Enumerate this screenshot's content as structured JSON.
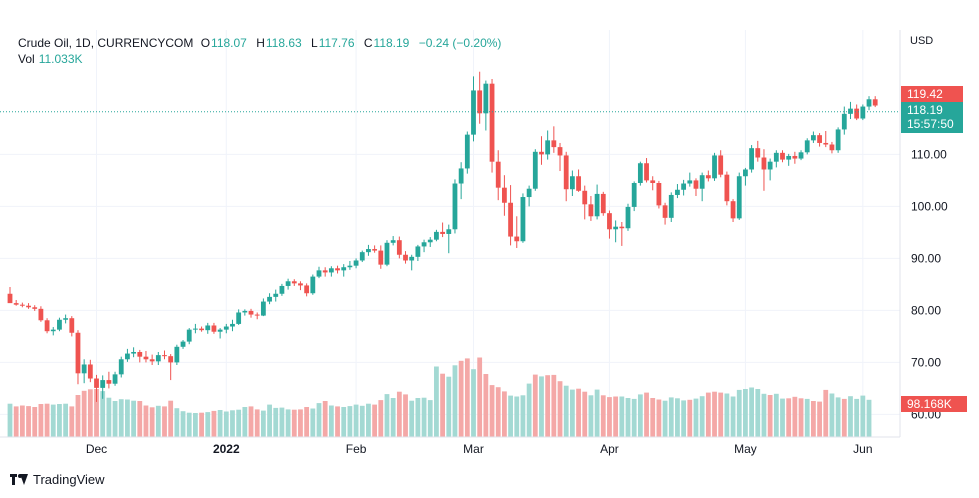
{
  "legend": {
    "symbol": "Crude Oil, 1D, CURRENCYCOM",
    "o_label": "O",
    "o_value": "118.07",
    "h_label": "H",
    "h_value": "118.63",
    "l_label": "L",
    "l_value": "117.76",
    "c_label": "C",
    "c_value": "118.19",
    "change": "−0.24 (−0.20%)",
    "vol_label": "Vol",
    "vol_value": "11.033K"
  },
  "currency": "USD",
  "tags": {
    "last_price": "119.42",
    "price": "118.19",
    "countdown": "15:57:50",
    "volume": "98.168K"
  },
  "brand": "TradingView",
  "colors": {
    "up": "#26a69a",
    "down": "#ef5350",
    "vol_up": "#a3d9d3",
    "vol_down": "#f4a8a7",
    "grid": "#f0f3fa"
  },
  "chart_data": {
    "type": "candlestick",
    "y_ticks": [
      "60.00",
      "70.00",
      "80.00",
      "90.00",
      "100.00",
      "110.00"
    ],
    "x_ticks": [
      "Dec",
      "2022",
      "Feb",
      "Mar",
      "Apr",
      "May",
      "Jun"
    ],
    "ylim": [
      57,
      127
    ],
    "current_price": 118.19,
    "candles": [
      [
        83.2,
        84.5,
        82.0,
        81.4
      ],
      [
        81.4,
        82.0,
        80.9,
        81.1
      ],
      [
        81.1,
        81.5,
        80.6,
        80.9
      ],
      [
        80.9,
        81.4,
        80.3,
        80.6
      ],
      [
        80.6,
        81.0,
        79.9,
        80.3
      ],
      [
        80.3,
        80.8,
        77.8,
        78.1
      ],
      [
        78.1,
        78.5,
        75.6,
        76.0
      ],
      [
        76.0,
        76.8,
        75.2,
        76.3
      ],
      [
        76.3,
        78.6,
        76.0,
        78.2
      ],
      [
        78.2,
        79.2,
        77.5,
        78.5
      ],
      [
        78.5,
        78.9,
        75.0,
        75.7
      ],
      [
        75.7,
        76.2,
        65.8,
        67.9
      ],
      [
        67.9,
        70.6,
        66.0,
        69.6
      ],
      [
        69.6,
        70.5,
        66.2,
        66.9
      ],
      [
        66.9,
        67.6,
        62.4,
        65.1
      ],
      [
        65.1,
        67.5,
        63.0,
        66.6
      ],
      [
        66.6,
        68.2,
        65.0,
        65.9
      ],
      [
        65.9,
        68.2,
        65.5,
        67.7
      ],
      [
        67.7,
        71.1,
        67.1,
        70.6
      ],
      [
        70.6,
        72.6,
        70.1,
        71.7
      ],
      [
        71.7,
        72.9,
        71.0,
        72.0
      ],
      [
        72.0,
        72.4,
        70.0,
        71.1
      ],
      [
        71.1,
        72.2,
        70.0,
        70.6
      ],
      [
        70.6,
        71.5,
        69.5,
        70.2
      ],
      [
        70.2,
        72.0,
        69.5,
        71.4
      ],
      [
        71.4,
        72.3,
        70.6,
        71.2
      ],
      [
        71.2,
        71.6,
        66.6,
        70.0
      ],
      [
        70.0,
        73.4,
        69.5,
        73.0
      ],
      [
        73.0,
        74.3,
        72.6,
        74.0
      ],
      [
        74.0,
        76.6,
        73.5,
        76.3
      ],
      [
        76.3,
        77.4,
        75.6,
        76.5
      ],
      [
        76.5,
        76.9,
        75.9,
        76.2
      ],
      [
        76.2,
        77.6,
        75.5,
        77.1
      ],
      [
        77.1,
        77.6,
        75.5,
        75.9
      ],
      [
        75.9,
        76.6,
        74.6,
        76.3
      ],
      [
        76.3,
        77.4,
        75.6,
        76.9
      ],
      [
        76.9,
        78.2,
        76.0,
        77.4
      ],
      [
        77.4,
        80.2,
        77.2,
        79.6
      ],
      [
        79.6,
        80.2,
        79.0,
        79.9
      ],
      [
        79.9,
        80.3,
        78.6,
        79.2
      ],
      [
        79.2,
        79.6,
        78.3,
        79.0
      ],
      [
        79.0,
        82.3,
        78.9,
        81.7
      ],
      [
        81.7,
        83.3,
        81.2,
        82.6
      ],
      [
        82.6,
        84.0,
        81.7,
        83.2
      ],
      [
        83.2,
        85.1,
        82.8,
        84.7
      ],
      [
        84.7,
        86.1,
        84.0,
        85.6
      ],
      [
        85.6,
        86.0,
        84.7,
        85.2
      ],
      [
        85.2,
        85.6,
        83.9,
        84.8
      ],
      [
        84.8,
        85.2,
        82.7,
        83.3
      ],
      [
        83.3,
        86.9,
        83.0,
        86.5
      ],
      [
        86.5,
        88.4,
        86.2,
        87.7
      ],
      [
        87.7,
        88.3,
        86.5,
        87.3
      ],
      [
        87.3,
        88.5,
        86.5,
        88.1
      ],
      [
        88.1,
        88.6,
        87.1,
        87.7
      ],
      [
        87.7,
        88.9,
        86.5,
        88.3
      ],
      [
        88.3,
        89.5,
        87.8,
        88.6
      ],
      [
        88.6,
        90.0,
        88.1,
        89.6
      ],
      [
        89.6,
        91.5,
        89.3,
        91.2
      ],
      [
        91.2,
        92.6,
        90.5,
        91.8
      ],
      [
        91.8,
        92.5,
        91.1,
        91.5
      ],
      [
        91.5,
        92.5,
        88.0,
        88.8
      ],
      [
        88.8,
        93.5,
        88.5,
        93.0
      ],
      [
        93.0,
        94.3,
        92.5,
        93.5
      ],
      [
        93.5,
        94.2,
        90.0,
        90.7
      ],
      [
        90.7,
        91.4,
        89.0,
        89.6
      ],
      [
        89.6,
        90.7,
        87.7,
        90.3
      ],
      [
        90.3,
        92.6,
        89.5,
        92.3
      ],
      [
        92.3,
        93.6,
        91.2,
        93.1
      ],
      [
        93.1,
        94.1,
        92.2,
        93.6
      ],
      [
        93.6,
        95.5,
        93.3,
        95.1
      ],
      [
        95.1,
        96.9,
        94.1,
        94.7
      ],
      [
        94.7,
        96.5,
        91.0,
        95.6
      ],
      [
        95.6,
        105.2,
        94.8,
        104.4
      ],
      [
        104.4,
        108.5,
        101.4,
        107.3
      ],
      [
        107.3,
        114.4,
        106.3,
        113.8
      ],
      [
        113.8,
        125.0,
        112.5,
        122.3
      ],
      [
        122.3,
        125.9,
        115.9,
        117.9
      ],
      [
        117.9,
        124.2,
        114.6,
        123.6
      ],
      [
        123.6,
        124.5,
        106.5,
        108.6
      ],
      [
        108.6,
        110.8,
        101.2,
        103.6
      ],
      [
        103.6,
        106.0,
        98.2,
        100.7
      ],
      [
        100.7,
        104.1,
        92.5,
        94.2
      ],
      [
        94.2,
        98.1,
        92.0,
        93.3
      ],
      [
        93.3,
        102.5,
        93.0,
        101.8
      ],
      [
        101.8,
        104.0,
        100.0,
        103.4
      ],
      [
        103.4,
        111.0,
        103.0,
        110.5
      ],
      [
        110.5,
        113.5,
        108.0,
        110.0
      ],
      [
        110.0,
        114.6,
        109.0,
        112.7
      ],
      [
        112.7,
        115.4,
        110.3,
        111.4
      ],
      [
        111.4,
        112.2,
        106.8,
        109.8
      ],
      [
        109.8,
        110.5,
        101.0,
        103.3
      ],
      [
        103.3,
        106.9,
        102.0,
        105.8
      ],
      [
        105.8,
        107.1,
        102.8,
        103.0
      ],
      [
        103.0,
        104.0,
        97.5,
        100.4
      ],
      [
        100.4,
        102.0,
        97.2,
        98.1
      ],
      [
        98.1,
        104.2,
        97.5,
        102.4
      ],
      [
        102.4,
        102.8,
        98.2,
        98.7
      ],
      [
        98.7,
        99.2,
        93.8,
        95.6
      ],
      [
        95.6,
        97.3,
        93.1,
        96.1
      ],
      [
        96.1,
        97.0,
        92.4,
        95.8
      ],
      [
        95.8,
        100.5,
        95.3,
        99.9
      ],
      [
        99.9,
        104.8,
        99.1,
        104.5
      ],
      [
        104.5,
        108.6,
        104.0,
        108.3
      ],
      [
        108.3,
        109.3,
        104.6,
        105.0
      ],
      [
        105.0,
        105.8,
        103.1,
        104.5
      ],
      [
        104.5,
        104.9,
        99.6,
        100.2
      ],
      [
        100.2,
        100.7,
        96.5,
        97.8
      ],
      [
        97.8,
        102.7,
        97.0,
        102.2
      ],
      [
        102.2,
        104.3,
        101.6,
        103.2
      ],
      [
        103.2,
        105.1,
        102.1,
        104.4
      ],
      [
        104.4,
        106.5,
        103.8,
        105.0
      ],
      [
        105.0,
        105.4,
        102.0,
        103.4
      ],
      [
        103.4,
        106.5,
        101.0,
        106.0
      ],
      [
        106.0,
        106.9,
        104.8,
        105.4
      ],
      [
        105.4,
        110.3,
        104.9,
        109.8
      ],
      [
        109.8,
        110.8,
        105.6,
        106.1
      ],
      [
        106.1,
        106.7,
        100.2,
        101.0
      ],
      [
        101.0,
        101.4,
        97.0,
        97.7
      ],
      [
        97.7,
        106.5,
        97.4,
        105.8
      ],
      [
        105.8,
        107.4,
        104.0,
        107.1
      ],
      [
        107.1,
        111.8,
        106.5,
        111.2
      ],
      [
        111.2,
        112.6,
        108.6,
        109.4
      ],
      [
        109.4,
        111.0,
        103.0,
        107.1
      ],
      [
        107.1,
        109.2,
        105.0,
        108.6
      ],
      [
        108.6,
        110.8,
        107.5,
        110.3
      ],
      [
        110.3,
        110.8,
        108.5,
        109.0
      ],
      [
        109.0,
        110.1,
        107.8,
        109.7
      ],
      [
        109.7,
        110.5,
        108.2,
        109.2
      ],
      [
        109.2,
        110.8,
        108.9,
        110.4
      ],
      [
        110.4,
        113.1,
        110.0,
        112.7
      ],
      [
        112.7,
        114.4,
        112.2,
        113.7
      ],
      [
        113.7,
        114.1,
        111.5,
        112.2
      ],
      [
        112.2,
        114.5,
        111.4,
        111.9
      ],
      [
        111.9,
        112.4,
        110.2,
        110.8
      ],
      [
        110.8,
        115.2,
        110.3,
        114.8
      ],
      [
        114.8,
        119.2,
        113.8,
        117.8
      ],
      [
        117.8,
        120.1,
        116.8,
        118.8
      ],
      [
        118.8,
        119.6,
        116.6,
        116.9
      ],
      [
        116.9,
        119.6,
        116.6,
        119.2
      ],
      [
        119.2,
        121.2,
        118.5,
        120.6
      ],
      [
        120.6,
        121.2,
        119.1,
        119.4
      ]
    ],
    "volumes": [
      [
        11.1,
        0
      ],
      [
        10.2,
        1
      ],
      [
        10.5,
        1
      ],
      [
        10.3,
        1
      ],
      [
        10.0,
        1
      ],
      [
        11.0,
        1
      ],
      [
        11.1,
        1
      ],
      [
        10.8,
        0
      ],
      [
        11.0,
        0
      ],
      [
        11.1,
        0
      ],
      [
        10.2,
        1
      ],
      [
        14.0,
        1
      ],
      [
        15.4,
        1
      ],
      [
        15.9,
        1
      ],
      [
        16.0,
        1
      ],
      [
        15.3,
        0
      ],
      [
        13.1,
        0
      ],
      [
        12.0,
        0
      ],
      [
        12.6,
        0
      ],
      [
        12.5,
        0
      ],
      [
        12.1,
        0
      ],
      [
        12.0,
        1
      ],
      [
        10.5,
        1
      ],
      [
        9.9,
        1
      ],
      [
        10.4,
        0
      ],
      [
        10.2,
        1
      ],
      [
        12.1,
        1
      ],
      [
        9.6,
        0
      ],
      [
        8.6,
        0
      ],
      [
        8.1,
        0
      ],
      [
        8.0,
        0
      ],
      [
        8.1,
        1
      ],
      [
        8.3,
        0
      ],
      [
        8.7,
        1
      ],
      [
        9.0,
        0
      ],
      [
        8.5,
        0
      ],
      [
        8.9,
        0
      ],
      [
        9.1,
        0
      ],
      [
        10.0,
        0
      ],
      [
        10.2,
        1
      ],
      [
        9.2,
        1
      ],
      [
        8.8,
        0
      ],
      [
        10.8,
        0
      ],
      [
        9.7,
        0
      ],
      [
        9.8,
        0
      ],
      [
        9.2,
        0
      ],
      [
        9.1,
        1
      ],
      [
        9.2,
        1
      ],
      [
        10.0,
        1
      ],
      [
        9.5,
        0
      ],
      [
        11.3,
        0
      ],
      [
        12.0,
        1
      ],
      [
        10.5,
        0
      ],
      [
        10.2,
        1
      ],
      [
        10.0,
        0
      ],
      [
        10.3,
        0
      ],
      [
        10.8,
        0
      ],
      [
        10.4,
        0
      ],
      [
        11.1,
        0
      ],
      [
        10.8,
        1
      ],
      [
        12.3,
        1
      ],
      [
        14.3,
        0
      ],
      [
        13.0,
        0
      ],
      [
        15.1,
        1
      ],
      [
        14.2,
        1
      ],
      [
        12.1,
        0
      ],
      [
        13.0,
        0
      ],
      [
        13.1,
        0
      ],
      [
        12.3,
        0
      ],
      [
        23.5,
        0
      ],
      [
        21.1,
        1
      ],
      [
        20.1,
        0
      ],
      [
        23.9,
        0
      ],
      [
        25.4,
        1
      ],
      [
        26.2,
        1
      ],
      [
        22.6,
        0
      ],
      [
        26.5,
        1
      ],
      [
        21.0,
        1
      ],
      [
        17.3,
        1
      ],
      [
        16.6,
        1
      ],
      [
        15.2,
        1
      ],
      [
        13.8,
        0
      ],
      [
        13.5,
        0
      ],
      [
        13.9,
        0
      ],
      [
        17.8,
        0
      ],
      [
        20.8,
        1
      ],
      [
        20.2,
        0
      ],
      [
        20.6,
        1
      ],
      [
        20.7,
        1
      ],
      [
        18.6,
        1
      ],
      [
        17.1,
        0
      ],
      [
        15.8,
        0
      ],
      [
        16.1,
        1
      ],
      [
        15.1,
        1
      ],
      [
        13.9,
        0
      ],
      [
        15.8,
        0
      ],
      [
        13.9,
        1
      ],
      [
        13.3,
        1
      ],
      [
        13.5,
        1
      ],
      [
        13.5,
        0
      ],
      [
        13.0,
        0
      ],
      [
        12.7,
        0
      ],
      [
        14.2,
        0
      ],
      [
        14.8,
        1
      ],
      [
        13.0,
        1
      ],
      [
        12.5,
        1
      ],
      [
        12.1,
        0
      ],
      [
        13.2,
        0
      ],
      [
        12.9,
        0
      ],
      [
        12.2,
        0
      ],
      [
        12.4,
        1
      ],
      [
        12.8,
        0
      ],
      [
        13.6,
        0
      ],
      [
        14.8,
        1
      ],
      [
        15.1,
        1
      ],
      [
        14.8,
        1
      ],
      [
        14.5,
        0
      ],
      [
        13.5,
        0
      ],
      [
        15.7,
        0
      ],
      [
        16.0,
        0
      ],
      [
        16.5,
        0
      ],
      [
        16.0,
        0
      ],
      [
        14.4,
        0
      ],
      [
        14.0,
        1
      ],
      [
        14.4,
        0
      ],
      [
        12.8,
        0
      ],
      [
        12.9,
        1
      ],
      [
        13.4,
        1
      ],
      [
        12.9,
        1
      ],
      [
        12.7,
        0
      ],
      [
        12.0,
        1
      ],
      [
        11.8,
        1
      ],
      [
        15.7,
        1
      ],
      [
        14.5,
        0
      ],
      [
        13.2,
        0
      ],
      [
        12.7,
        1
      ],
      [
        13.6,
        0
      ],
      [
        12.7,
        0
      ],
      [
        13.8,
        0
      ],
      [
        12.4,
        0
      ]
    ]
  }
}
